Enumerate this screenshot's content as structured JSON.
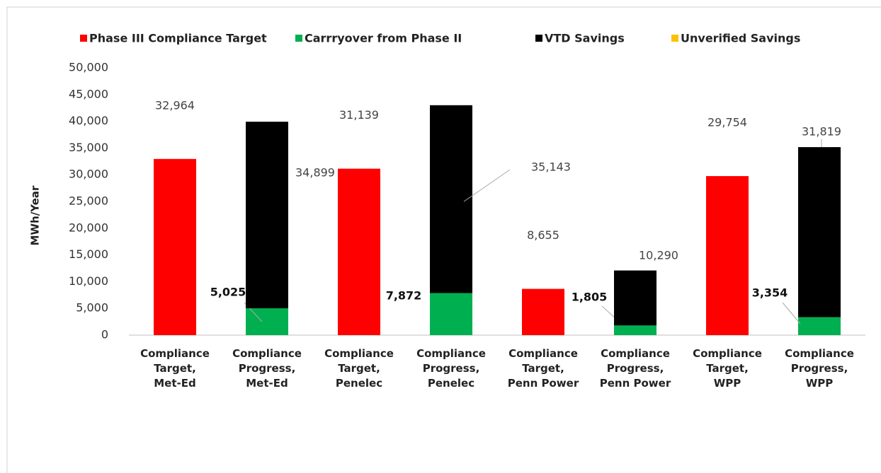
{
  "chart_data": {
    "type": "stacked_bar",
    "y_label": "MWh/Year",
    "categories": [
      "Compliance\nTarget,\nMet-Ed",
      "Compliance Progress,\nMet-Ed",
      "Compliance\nTarget,\nPenelec",
      "Compliance\nProgress,\nPenelec",
      "Compliance\nTarget,\nPenn Power",
      "Compliance\nProgress,\nPenn Power",
      "Compliance\nTarget,\nWPP",
      "Compliance\nProgress,\nWPP"
    ],
    "series": [
      {
        "name": "Phase III Compliance Target",
        "color": "#ff0000",
        "values": [
          32964,
          null,
          31139,
          null,
          8655,
          null,
          29754,
          null
        ],
        "value_labels": [
          "32,964",
          null,
          "31,139",
          null,
          "8,655",
          null,
          "29,754",
          null
        ]
      },
      {
        "name": "Carrryover from Phase II",
        "color": "#00b050",
        "values": [
          null,
          5025,
          null,
          7872,
          null,
          1805,
          null,
          3354
        ],
        "value_labels": [
          null,
          "5,025",
          null,
          "7,872",
          null,
          "1,805",
          null,
          "3,354"
        ]
      },
      {
        "name": "VTD Savings",
        "color": "#000000",
        "values": [
          null,
          34899,
          null,
          35143,
          null,
          10290,
          null,
          31819
        ],
        "value_labels": [
          null,
          "34,899",
          null,
          "35,143",
          null,
          "10,290",
          null,
          "31,819"
        ]
      },
      {
        "name": "Unverified Savings",
        "color": "#ffc000",
        "values": [
          null,
          null,
          null,
          null,
          null,
          null,
          null,
          null
        ]
      }
    ],
    "ylim": [
      0,
      50000
    ],
    "yticks": [
      0,
      {
        "value": 5000,
        "label": "5,000"
      },
      {
        "value": 10000,
        "label": "10,000"
      },
      {
        "value": 15000,
        "label": "15,000"
      },
      {
        "value": 20000,
        "label": "20,000"
      },
      {
        "value": 25000,
        "label": "25,000"
      },
      {
        "value": 30000,
        "label": "30,000"
      },
      {
        "value": 35000,
        "label": "35,000"
      },
      {
        "value": 40000,
        "label": "40,000"
      },
      {
        "value": 45000,
        "label": "45,000"
      },
      {
        "value": 50000,
        "label": "50,000"
      }
    ],
    "grid": false,
    "legend": "top"
  }
}
